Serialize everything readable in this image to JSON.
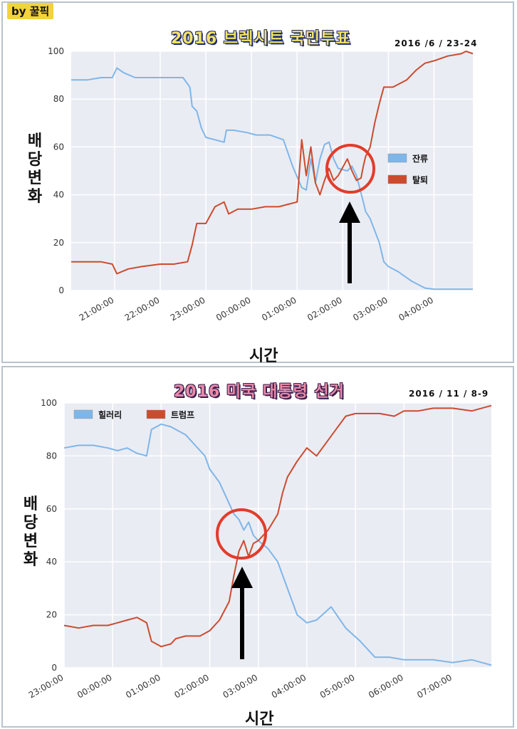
{
  "watermark": "by 꿀픽",
  "chart_data": [
    {
      "type": "line",
      "title": "2016 브렉시트 국민투표",
      "date_label": "2016 /6 / 23-24",
      "ylabel": "배당변화",
      "xlabel": "시간",
      "ylim": [
        0,
        100
      ],
      "y_ticks": [
        0,
        20,
        40,
        60,
        80,
        100
      ],
      "x_ticks": [
        "21:00:00",
        "22:00:00",
        "23:00:00",
        "00:00:00",
        "01:00:00",
        "02:00:00",
        "03:00:00",
        "04:00:00"
      ],
      "x_range_hours": [
        -0.95,
        7.85
      ],
      "grid": true,
      "legend_position": "right",
      "colors": {
        "remain": "#7fb6e8",
        "leave": "#cc4b2d"
      },
      "series": [
        {
          "name": "잔류",
          "color": "#7fb6e8",
          "x": [
            -0.95,
            -0.6,
            -0.3,
            -0.05,
            0.05,
            0.2,
            0.45,
            0.7,
            1.0,
            1.3,
            1.5,
            1.65,
            1.7,
            1.8,
            1.9,
            2.0,
            2.2,
            2.4,
            2.45,
            2.6,
            2.9,
            3.1,
            3.4,
            3.7,
            3.9,
            4.1,
            4.2,
            4.3,
            4.4,
            4.5,
            4.6,
            4.7,
            4.8,
            4.9,
            5.1,
            5.2,
            5.3,
            5.45,
            5.5,
            5.6,
            5.7,
            5.8,
            5.9,
            6.0,
            6.2,
            6.5,
            6.8,
            7.0,
            7.3,
            7.85
          ],
          "y": [
            88,
            88,
            89,
            89,
            93,
            91,
            89,
            89,
            89,
            89,
            89,
            85,
            77,
            75,
            68,
            64,
            63,
            62,
            67,
            67,
            66,
            65,
            65,
            63,
            52,
            43,
            42,
            55,
            45,
            55,
            61,
            62,
            55,
            51,
            50,
            52,
            48,
            37,
            33,
            30,
            25,
            20,
            12,
            10,
            8,
            4,
            1,
            0.5,
            0.5,
            0.5
          ]
        },
        {
          "name": "탈퇴",
          "color": "#cc4b2d",
          "x": [
            -0.95,
            -0.6,
            -0.3,
            -0.05,
            0.05,
            0.3,
            0.6,
            1.0,
            1.3,
            1.6,
            1.7,
            1.8,
            2.0,
            2.2,
            2.4,
            2.5,
            2.7,
            3.0,
            3.3,
            3.6,
            3.8,
            4.0,
            4.1,
            4.2,
            4.3,
            4.4,
            4.5,
            4.6,
            4.7,
            4.8,
            4.9,
            5.1,
            5.2,
            5.3,
            5.4,
            5.45,
            5.5,
            5.6,
            5.7,
            5.8,
            5.9,
            6.1,
            6.4,
            6.6,
            6.8,
            7.0,
            7.3,
            7.6,
            7.7,
            7.85
          ],
          "y": [
            12,
            12,
            12,
            11,
            7,
            9,
            10,
            11,
            11,
            12,
            19,
            28,
            28,
            35,
            37,
            32,
            34,
            34,
            35,
            35,
            36,
            37,
            63,
            48,
            60,
            45,
            40,
            46,
            51,
            46,
            48,
            55,
            50,
            46,
            47,
            52,
            56,
            60,
            70,
            78,
            85,
            85,
            88,
            92,
            95,
            96,
            98,
            99,
            100,
            99
          ]
        }
      ]
    },
    {
      "type": "line",
      "title": "2016 미국 대통령 선거",
      "date_label": "2016 / 11 / 8-9",
      "ylabel": "배당변화",
      "xlabel": "시간",
      "ylim": [
        0,
        100
      ],
      "y_ticks": [
        0,
        20,
        40,
        60,
        80,
        100
      ],
      "x_ticks": [
        "23:00:00",
        "00:00:00",
        "01:00:00",
        "02:00:00",
        "03:00:00",
        "04:00:00",
        "05:00:00",
        "06:00:00",
        "07:00:00"
      ],
      "x_range_hours": [
        0,
        8.8
      ],
      "grid": true,
      "legend_position": "top-left",
      "colors": {
        "clinton": "#7fb6e8",
        "trump": "#cc4b2d"
      },
      "series": [
        {
          "name": "힐러리",
          "color": "#7fb6e8",
          "x": [
            0,
            0.3,
            0.6,
            0.9,
            1.1,
            1.3,
            1.5,
            1.7,
            1.8,
            2.0,
            2.2,
            2.3,
            2.5,
            2.7,
            2.9,
            3.0,
            3.2,
            3.4,
            3.5,
            3.6,
            3.7,
            3.8,
            3.9,
            4.0,
            4.2,
            4.4,
            4.5,
            4.6,
            4.8,
            5.0,
            5.2,
            5.5,
            5.8,
            6.1,
            6.4,
            6.7,
            7.0,
            7.3,
            7.6,
            8.0,
            8.4,
            8.8
          ],
          "y": [
            83,
            84,
            84,
            83,
            82,
            83,
            81,
            80,
            90,
            92,
            91,
            90,
            88,
            84,
            80,
            75,
            70,
            62,
            58,
            56,
            52,
            55,
            50,
            48,
            45,
            40,
            35,
            30,
            20,
            17,
            18,
            23,
            15,
            10,
            4,
            4,
            3,
            3,
            3,
            2,
            3,
            1
          ]
        },
        {
          "name": "트럼프",
          "color": "#cc4b2d",
          "x": [
            0,
            0.3,
            0.6,
            0.9,
            1.1,
            1.3,
            1.5,
            1.7,
            1.8,
            2.0,
            2.2,
            2.3,
            2.5,
            2.8,
            3.0,
            3.2,
            3.4,
            3.5,
            3.6,
            3.7,
            3.8,
            3.9,
            4.0,
            4.2,
            4.4,
            4.5,
            4.6,
            4.8,
            5.0,
            5.2,
            5.4,
            5.6,
            5.8,
            6.0,
            6.2,
            6.5,
            6.8,
            7.0,
            7.3,
            7.6,
            8.0,
            8.4,
            8.8
          ],
          "y": [
            16,
            15,
            16,
            16,
            17,
            18,
            19,
            17,
            10,
            8,
            9,
            11,
            12,
            12,
            14,
            18,
            25,
            35,
            44,
            48,
            42,
            47,
            48,
            52,
            58,
            66,
            72,
            78,
            83,
            80,
            85,
            90,
            95,
            96,
            96,
            96,
            95,
            97,
            97,
            98,
            98,
            97,
            99
          ]
        }
      ]
    }
  ]
}
